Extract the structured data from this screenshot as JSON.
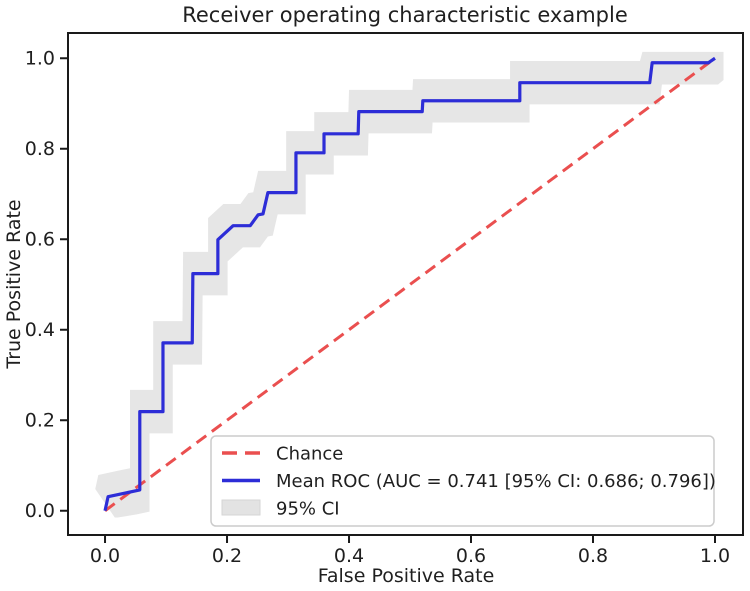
{
  "chart_data": {
    "type": "line",
    "title": "Receiver operating characteristic example",
    "xlabel": "False Positive Rate",
    "ylabel": "True Positive Rate",
    "xlim": [
      -0.0607,
      1.0459
    ],
    "ylim": [
      -0.0536,
      1.0558
    ],
    "grid": false,
    "x_tick_values": [
      0.0,
      0.2,
      0.4,
      0.6,
      0.8,
      1.0
    ],
    "x_tick_labels": [
      "0.0",
      "0.2",
      "0.4",
      "0.6",
      "0.8",
      "1.0"
    ],
    "y_tick_values": [
      0.0,
      0.2,
      0.4,
      0.6,
      0.8,
      1.0
    ],
    "y_tick_labels": [
      "0.0",
      "0.2",
      "0.4",
      "0.6",
      "0.8",
      "1.0"
    ],
    "auc": 0.741,
    "auc_ci_95": [
      0.686,
      0.796
    ],
    "legend": {
      "position": "lower right",
      "items": [
        {
          "label": "Chance",
          "swatch": "dashed-line",
          "color": "#ea4f4f"
        },
        {
          "label": "Mean ROC (AUC = 0.741 [95% CI: 0.686; 0.796])",
          "swatch": "solid-line",
          "color": "#2d2dd7"
        },
        {
          "label": "95% CI",
          "swatch": "patch",
          "color": "#e3e3e3"
        }
      ]
    },
    "series": [
      {
        "role": "chance",
        "name": "Chance",
        "style": "dashed",
        "color": "#ea4f4f",
        "x": [
          0.0,
          1.0
        ],
        "y": [
          0.0,
          1.0
        ]
      },
      {
        "role": "mean",
        "name": "Mean ROC",
        "style": "step-line",
        "color": "#2d2dd7",
        "x": [
          0.0,
          0.005,
          0.036,
          0.057,
          0.057,
          0.095,
          0.095,
          0.143,
          0.144,
          0.185,
          0.185,
          0.21,
          0.238,
          0.251,
          0.259,
          0.267,
          0.313,
          0.313,
          0.359,
          0.359,
          0.415,
          0.416,
          0.52,
          0.521,
          0.68,
          0.68,
          0.893,
          0.897,
          0.989,
          1.0
        ],
        "y": [
          0.0,
          0.031,
          0.04,
          0.046,
          0.219,
          0.219,
          0.371,
          0.371,
          0.524,
          0.524,
          0.599,
          0.63,
          0.63,
          0.654,
          0.656,
          0.703,
          0.703,
          0.791,
          0.791,
          0.833,
          0.833,
          0.882,
          0.882,
          0.906,
          0.906,
          0.946,
          0.946,
          0.99,
          0.99,
          1.0
        ]
      },
      {
        "role": "band",
        "name": "95% CI",
        "style": "band",
        "color": "#e6e6e6",
        "around": "Mean ROC",
        "dx": 0.016,
        "dy": 0.048,
        "x_clamp": [
          -0.017,
          1.014
        ],
        "y_clamp": [
          -0.015,
          1.014
        ]
      }
    ]
  }
}
